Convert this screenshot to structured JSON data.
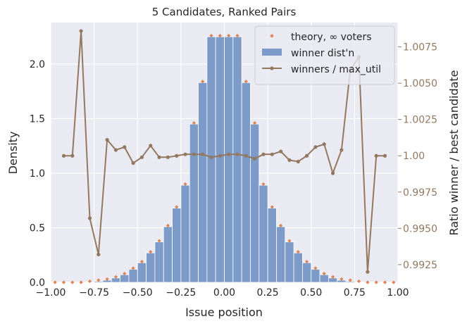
{
  "chart_data": {
    "type": "bar",
    "title": "5 Candidates, Ranked Pairs",
    "xlabel": "Issue position",
    "ylabel": "Density",
    "y2label": "Ratio winner / best candidate",
    "xlim": [
      -1.0,
      1.0
    ],
    "ylim": [
      0,
      2.38
    ],
    "y2lim": [
      0.99128,
      1.00918
    ],
    "grid": true,
    "legend_position": "top-right",
    "colors": {
      "background": "#eaeaf2",
      "grid": "#ffffff",
      "bars": "#7d9bc9",
      "theory": "#dd8452",
      "ratio": "#937860",
      "text": "#262626"
    },
    "x_ticks": [
      -1.0,
      -0.75,
      -0.5,
      -0.25,
      0.0,
      0.25,
      0.5,
      0.75,
      1.0
    ],
    "x_tick_labels": [
      "−1.00",
      "−0.75",
      "−0.50",
      "−0.25",
      "0.00",
      "0.25",
      "0.50",
      "0.75",
      "1.00"
    ],
    "y_ticks": [
      0.0,
      0.5,
      1.0,
      1.5,
      2.0
    ],
    "y_tick_labels": [
      "0.0",
      "0.5",
      "1.0",
      "1.5",
      "2.0"
    ],
    "y2_ticks": [
      0.9925,
      0.995,
      0.9975,
      1.0,
      1.0025,
      1.005,
      1.0075
    ],
    "y2_tick_labels": [
      "0.9925",
      "0.9950",
      "0.9975",
      "1.00",
      "1.0025",
      "1.0050",
      "1.0075"
    ],
    "bin_width": 0.05,
    "bin_centers": [
      -0.975,
      -0.925,
      -0.875,
      -0.825,
      -0.775,
      -0.725,
      -0.675,
      -0.625,
      -0.575,
      -0.525,
      -0.475,
      -0.425,
      -0.375,
      -0.325,
      -0.275,
      -0.225,
      -0.175,
      -0.125,
      -0.075,
      -0.025,
      0.025,
      0.075,
      0.125,
      0.175,
      0.225,
      0.275,
      0.325,
      0.375,
      0.425,
      0.475,
      0.525,
      0.575,
      0.625,
      0.675,
      0.725,
      0.775,
      0.825,
      0.875,
      0.925,
      0.975
    ],
    "series": [
      {
        "name": "theory, ∞ voters",
        "kind": "scatter",
        "x": [
          -0.975,
          -0.925,
          -0.875,
          -0.825,
          -0.775,
          -0.725,
          -0.675,
          -0.625,
          -0.575,
          -0.525,
          -0.475,
          -0.425,
          -0.375,
          -0.325,
          -0.275,
          -0.225,
          -0.175,
          -0.125,
          -0.075,
          -0.025,
          0.025,
          0.075,
          0.125,
          0.175,
          0.225,
          0.275,
          0.325,
          0.375,
          0.425,
          0.475,
          0.525,
          0.575,
          0.625,
          0.675,
          0.725,
          0.775,
          0.825,
          0.875,
          0.925,
          0.975
        ],
        "values": [
          0.0,
          0.0,
          0.0,
          0.0,
          0.01,
          0.02,
          0.03,
          0.05,
          0.08,
          0.13,
          0.19,
          0.28,
          0.38,
          0.52,
          0.69,
          0.9,
          1.46,
          1.84,
          2.26,
          2.26,
          2.26,
          2.26,
          1.84,
          1.46,
          0.9,
          0.69,
          0.52,
          0.38,
          0.28,
          0.19,
          0.13,
          0.08,
          0.05,
          0.03,
          0.02,
          0.01,
          0.0,
          0.0,
          0.0,
          0.0
        ]
      },
      {
        "name": "winner dist'n",
        "kind": "bar",
        "values": [
          0.0,
          0.0,
          0.0,
          0.0,
          0.0,
          0.01,
          0.02,
          0.04,
          0.07,
          0.12,
          0.18,
          0.27,
          0.37,
          0.51,
          0.68,
          0.89,
          1.45,
          1.83,
          2.25,
          2.25,
          2.25,
          2.25,
          1.83,
          1.45,
          0.89,
          0.68,
          0.51,
          0.37,
          0.27,
          0.18,
          0.12,
          0.07,
          0.04,
          0.02,
          0.01,
          0.0,
          0.0,
          0.0,
          0.0,
          0.0
        ]
      },
      {
        "name": "winners / max_util",
        "kind": "line",
        "axis": "right",
        "x": [
          -0.925,
          -0.875,
          -0.825,
          -0.775,
          -0.725,
          -0.675,
          -0.625,
          -0.575,
          -0.525,
          -0.475,
          -0.425,
          -0.375,
          -0.325,
          -0.275,
          -0.225,
          -0.175,
          -0.125,
          -0.075,
          -0.025,
          0.025,
          0.075,
          0.125,
          0.175,
          0.225,
          0.275,
          0.325,
          0.375,
          0.425,
          0.475,
          0.525,
          0.575,
          0.625,
          0.675,
          0.725,
          0.775,
          0.825,
          0.875,
          0.925
        ],
        "values": [
          1.0,
          1.0,
          1.0086,
          0.9957,
          0.9932,
          1.0011,
          1.0004,
          1.0006,
          0.9995,
          0.9999,
          1.0007,
          0.9999,
          0.9999,
          1.0,
          1.0001,
          1.0001,
          1.0001,
          0.9999,
          1.0,
          1.0001,
          1.0001,
          1.0,
          0.9998,
          1.0001,
          1.0001,
          1.0003,
          0.9997,
          0.9996,
          1.0,
          1.0006,
          1.0008,
          0.9988,
          1.0004,
          1.0059,
          1.0068,
          0.992,
          1.0,
          1.0
        ]
      }
    ]
  }
}
